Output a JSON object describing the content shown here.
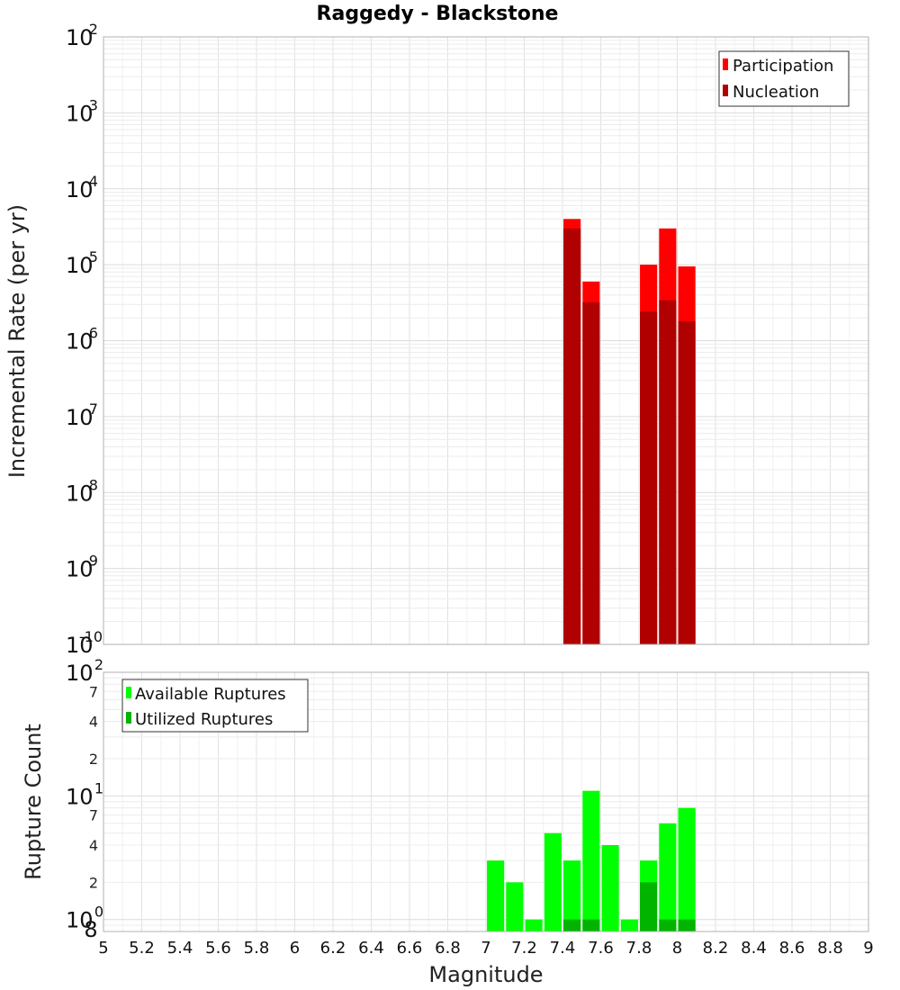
{
  "chart_data": [
    {
      "type": "bar",
      "title": "Raggedy - Blackstone",
      "ylabel": "Incremental Rate (per yr)",
      "yscale": "log",
      "ylim": [
        1e-10,
        0.01
      ],
      "xlim": [
        5,
        9
      ],
      "grid": true,
      "legend_position": "top-right",
      "series": [
        {
          "name": "Participation",
          "color": "#ff0000",
          "points": [
            {
              "x": 7.45,
              "y": 4e-05
            },
            {
              "x": 7.55,
              "y": 6e-06
            },
            {
              "x": 7.85,
              "y": 1e-05
            },
            {
              "x": 7.95,
              "y": 3e-05
            },
            {
              "x": 8.05,
              "y": 9.5e-06
            }
          ]
        },
        {
          "name": "Nucleation",
          "color": "#b00000",
          "points": [
            {
              "x": 7.45,
              "y": 3e-05
            },
            {
              "x": 7.55,
              "y": 3.2e-06
            },
            {
              "x": 7.85,
              "y": 2.4e-06
            },
            {
              "x": 7.95,
              "y": 3.4e-06
            },
            {
              "x": 8.05,
              "y": 1.8e-06
            }
          ]
        }
      ]
    },
    {
      "type": "bar",
      "xlabel": "Magnitude",
      "ylabel": "Rupture Count",
      "yscale": "log",
      "ylim": [
        0.8,
        100
      ],
      "xlim": [
        5,
        9
      ],
      "grid": true,
      "legend_position": "top-left",
      "x_ticks": [
        "5",
        "5.2",
        "5.4",
        "5.6",
        "5.8",
        "6",
        "6.2",
        "6.4",
        "6.6",
        "6.8",
        "7",
        "7.2",
        "7.4",
        "7.6",
        "7.8",
        "8",
        "8.2",
        "8.4",
        "8.6",
        "8.8",
        "9"
      ],
      "y_minor_labels": [
        "8",
        "2",
        "4",
        "7",
        "2",
        "4",
        "7"
      ],
      "series": [
        {
          "name": "Available Ruptures",
          "color": "#00ff00",
          "points": [
            {
              "x": 7.05,
              "y": 3
            },
            {
              "x": 7.15,
              "y": 2
            },
            {
              "x": 7.25,
              "y": 1
            },
            {
              "x": 7.35,
              "y": 5
            },
            {
              "x": 7.45,
              "y": 3
            },
            {
              "x": 7.55,
              "y": 11
            },
            {
              "x": 7.65,
              "y": 4
            },
            {
              "x": 7.75,
              "y": 1
            },
            {
              "x": 7.85,
              "y": 3
            },
            {
              "x": 7.95,
              "y": 6
            },
            {
              "x": 8.05,
              "y": 8
            }
          ]
        },
        {
          "name": "Utilized Ruptures",
          "color": "#00b400",
          "points": [
            {
              "x": 7.45,
              "y": 1
            },
            {
              "x": 7.55,
              "y": 1
            },
            {
              "x": 7.85,
              "y": 2
            },
            {
              "x": 7.95,
              "y": 1
            },
            {
              "x": 8.05,
              "y": 1
            }
          ]
        }
      ]
    }
  ]
}
